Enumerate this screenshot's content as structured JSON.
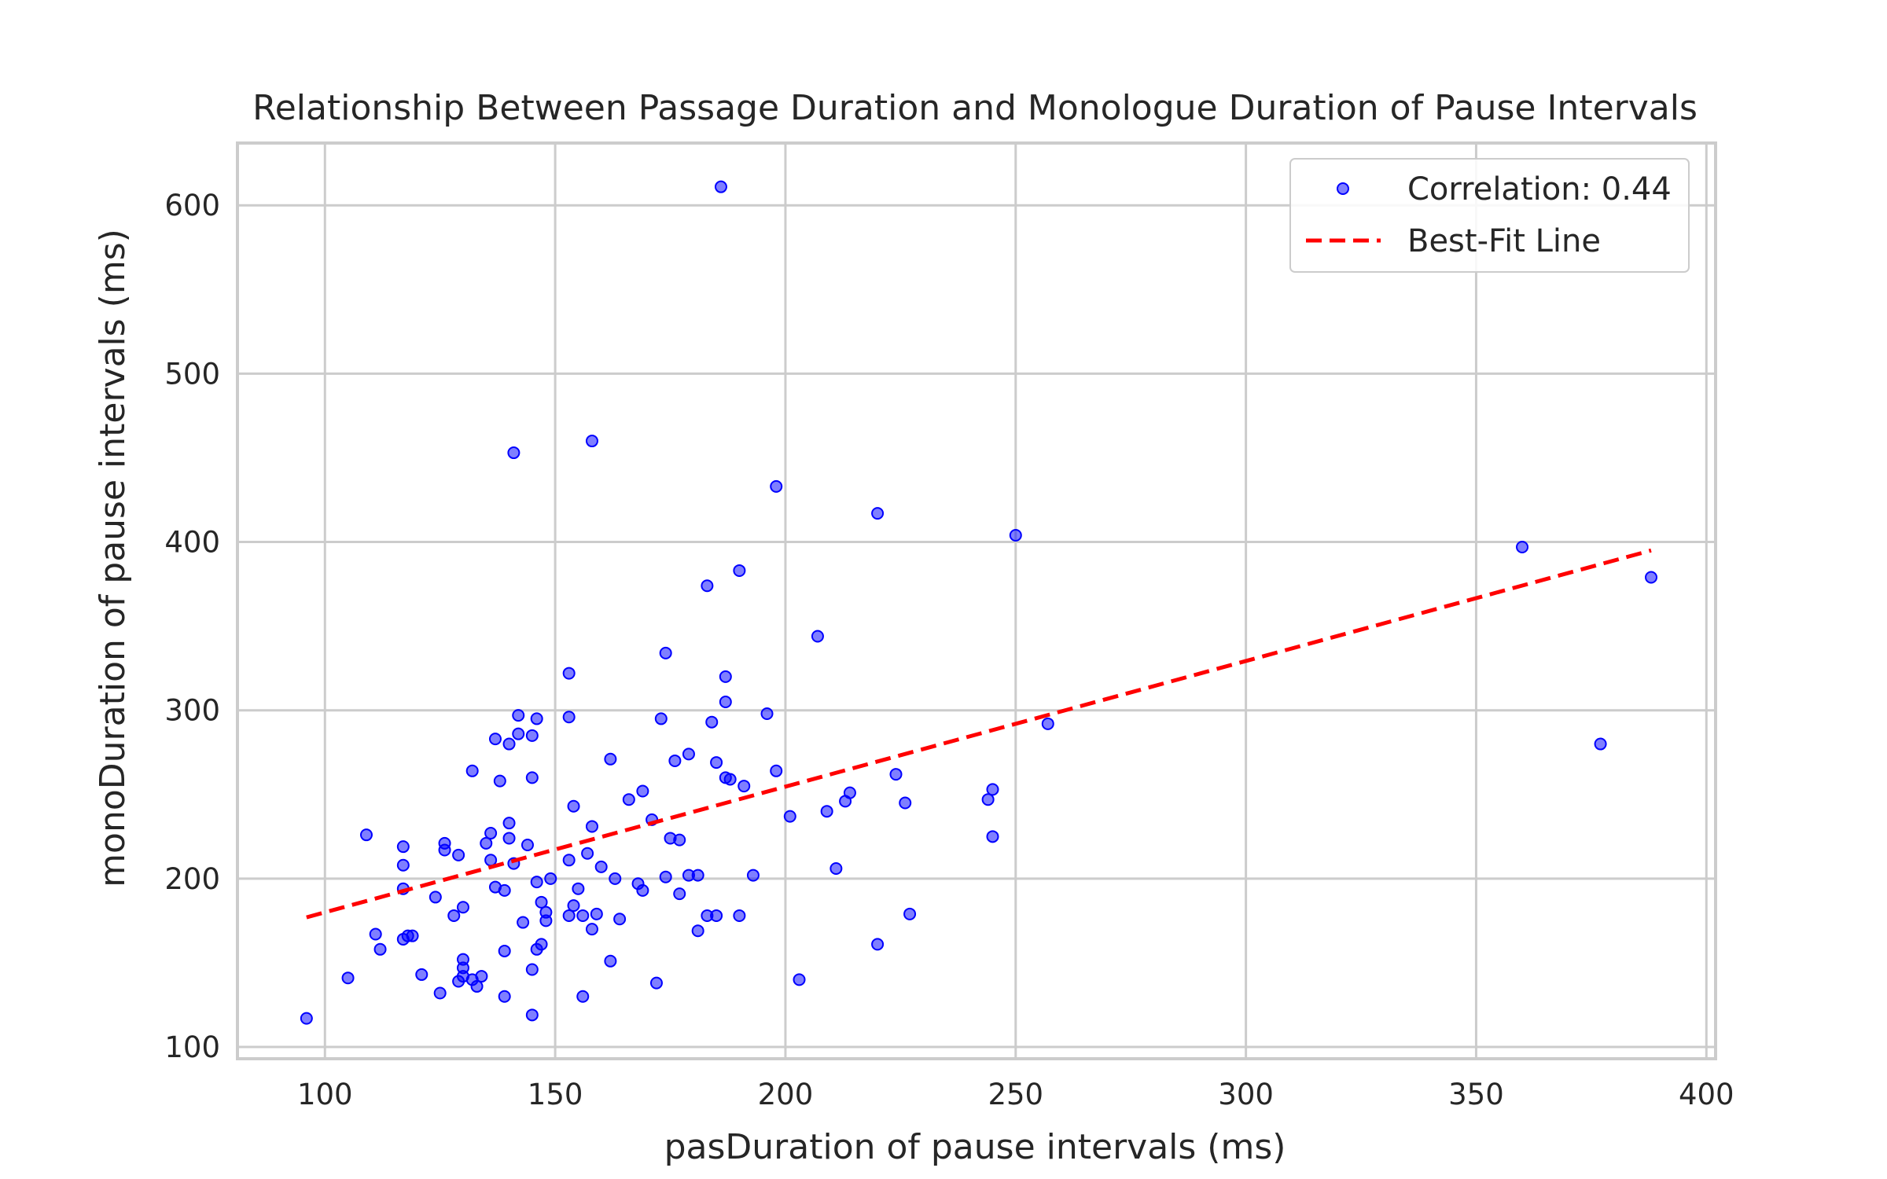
{
  "chart_data": {
    "type": "scatter",
    "title": "Relationship Between Passage Duration and Monologue Duration of Pause Intervals",
    "xlabel": "pasDuration of pause intervals (ms)",
    "ylabel": "monoDuration of pause intervals (ms)",
    "xlim": [
      81,
      402
    ],
    "ylim": [
      93,
      637
    ],
    "xticks": [
      100,
      150,
      200,
      250,
      300,
      350,
      400
    ],
    "yticks": [
      100,
      200,
      300,
      400,
      500,
      600
    ],
    "grid": true,
    "legend_position": "top-right",
    "colors": {
      "points": "#0000ff",
      "fit_line": "#ff0000",
      "grid": "#cccccc",
      "frame": "#cccccc"
    },
    "series": [
      {
        "name": "Correlation: 0.44",
        "kind": "scatter",
        "points": [
          [
            96,
            117
          ],
          [
            105,
            141
          ],
          [
            109,
            226
          ],
          [
            111,
            167
          ],
          [
            112,
            158
          ],
          [
            117,
            219
          ],
          [
            117,
            208
          ],
          [
            117,
            194
          ],
          [
            117,
            164
          ],
          [
            118,
            166
          ],
          [
            119,
            166
          ],
          [
            121,
            143
          ],
          [
            124,
            189
          ],
          [
            125,
            132
          ],
          [
            126,
            221
          ],
          [
            126,
            217
          ],
          [
            128,
            178
          ],
          [
            129,
            214
          ],
          [
            129,
            139
          ],
          [
            130,
            183
          ],
          [
            130,
            152
          ],
          [
            130,
            147
          ],
          [
            130,
            142
          ],
          [
            132,
            264
          ],
          [
            132,
            140
          ],
          [
            133,
            136
          ],
          [
            134,
            142
          ],
          [
            135,
            221
          ],
          [
            136,
            227
          ],
          [
            136,
            211
          ],
          [
            137,
            283
          ],
          [
            137,
            195
          ],
          [
            138,
            258
          ],
          [
            139,
            193
          ],
          [
            139,
            157
          ],
          [
            139,
            130
          ],
          [
            140,
            280
          ],
          [
            140,
            233
          ],
          [
            140,
            224
          ],
          [
            141,
            209
          ],
          [
            141,
            453
          ],
          [
            142,
            297
          ],
          [
            142,
            286
          ],
          [
            143,
            174
          ],
          [
            144,
            220
          ],
          [
            145,
            285
          ],
          [
            145,
            260
          ],
          [
            145,
            146
          ],
          [
            145,
            119
          ],
          [
            146,
            295
          ],
          [
            146,
            198
          ],
          [
            146,
            158
          ],
          [
            147,
            186
          ],
          [
            147,
            161
          ],
          [
            148,
            180
          ],
          [
            148,
            175
          ],
          [
            149,
            200
          ],
          [
            153,
            322
          ],
          [
            153,
            296
          ],
          [
            153,
            211
          ],
          [
            153,
            178
          ],
          [
            154,
            243
          ],
          [
            154,
            184
          ],
          [
            155,
            194
          ],
          [
            156,
            130
          ],
          [
            156,
            178
          ],
          [
            157,
            215
          ],
          [
            158,
            460
          ],
          [
            158,
            231
          ],
          [
            158,
            170
          ],
          [
            159,
            179
          ],
          [
            160,
            207
          ],
          [
            162,
            271
          ],
          [
            162,
            151
          ],
          [
            163,
            200
          ],
          [
            164,
            176
          ],
          [
            166,
            247
          ],
          [
            168,
            197
          ],
          [
            169,
            252
          ],
          [
            169,
            193
          ],
          [
            171,
            235
          ],
          [
            172,
            138
          ],
          [
            173,
            295
          ],
          [
            174,
            334
          ],
          [
            174,
            201
          ],
          [
            175,
            224
          ],
          [
            176,
            270
          ],
          [
            177,
            223
          ],
          [
            177,
            191
          ],
          [
            179,
            274
          ],
          [
            179,
            202
          ],
          [
            181,
            202
          ],
          [
            181,
            169
          ],
          [
            183,
            374
          ],
          [
            183,
            178
          ],
          [
            184,
            293
          ],
          [
            185,
            269
          ],
          [
            185,
            178
          ],
          [
            186,
            611
          ],
          [
            187,
            320
          ],
          [
            187,
            305
          ],
          [
            187,
            260
          ],
          [
            188,
            259
          ],
          [
            190,
            383
          ],
          [
            190,
            178
          ],
          [
            191,
            255
          ],
          [
            193,
            202
          ],
          [
            196,
            298
          ],
          [
            198,
            433
          ],
          [
            198,
            264
          ],
          [
            201,
            237
          ],
          [
            203,
            140
          ],
          [
            207,
            344
          ],
          [
            209,
            240
          ],
          [
            211,
            206
          ],
          [
            213,
            246
          ],
          [
            214,
            251
          ],
          [
            220,
            417
          ],
          [
            220,
            161
          ],
          [
            224,
            262
          ],
          [
            226,
            245
          ],
          [
            227,
            179
          ],
          [
            244,
            247
          ],
          [
            245,
            253
          ],
          [
            245,
            225
          ],
          [
            250,
            404
          ],
          [
            257,
            292
          ],
          [
            360,
            397
          ],
          [
            377,
            280
          ],
          [
            388,
            379
          ]
        ]
      },
      {
        "name": "Best-Fit Line",
        "kind": "line",
        "style": "dashed",
        "points": [
          [
            96,
            177
          ],
          [
            388,
            395
          ]
        ]
      }
    ]
  }
}
